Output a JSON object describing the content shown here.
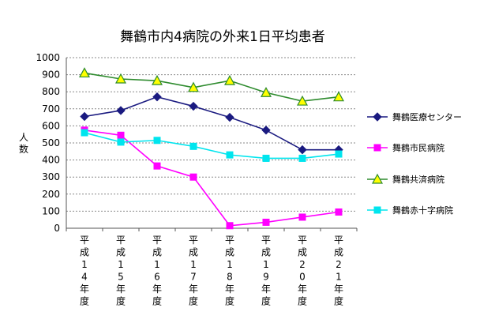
{
  "chart_data": {
    "type": "line",
    "title": "舞鶴市内4病院の外来1日平均患者",
    "ylabel": "人数",
    "ylim": [
      0,
      1000
    ],
    "yticks": [
      0,
      100,
      200,
      300,
      400,
      500,
      600,
      700,
      800,
      900,
      1000
    ],
    "categories": [
      "平成14年度",
      "平成15年度",
      "平成16年度",
      "平成17年度",
      "平成18年度",
      "平成19年度",
      "平成20年度",
      "平成21年度"
    ],
    "grid": "horizontal dotted",
    "legend_position": "right",
    "series": [
      {
        "name": "舞鶴医療センター",
        "color": "#1a1a80",
        "marker": "diamond",
        "values": [
          655,
          690,
          770,
          715,
          650,
          575,
          460,
          460
        ]
      },
      {
        "name": "舞鶴市民病院",
        "color": "#ff00ff",
        "marker": "square",
        "values": [
          575,
          545,
          365,
          300,
          15,
          35,
          65,
          95
        ]
      },
      {
        "name": "舞鶴共済病院",
        "color": "#2e8b2e",
        "marker": "triangle",
        "marker_fill": "#ffff00",
        "values": [
          910,
          875,
          865,
          825,
          865,
          795,
          745,
          770
        ]
      },
      {
        "name": "舞鶴赤十字病院",
        "color": "#00e5ee",
        "marker": "square",
        "values": [
          560,
          505,
          515,
          480,
          430,
          410,
          410,
          435
        ]
      }
    ]
  }
}
